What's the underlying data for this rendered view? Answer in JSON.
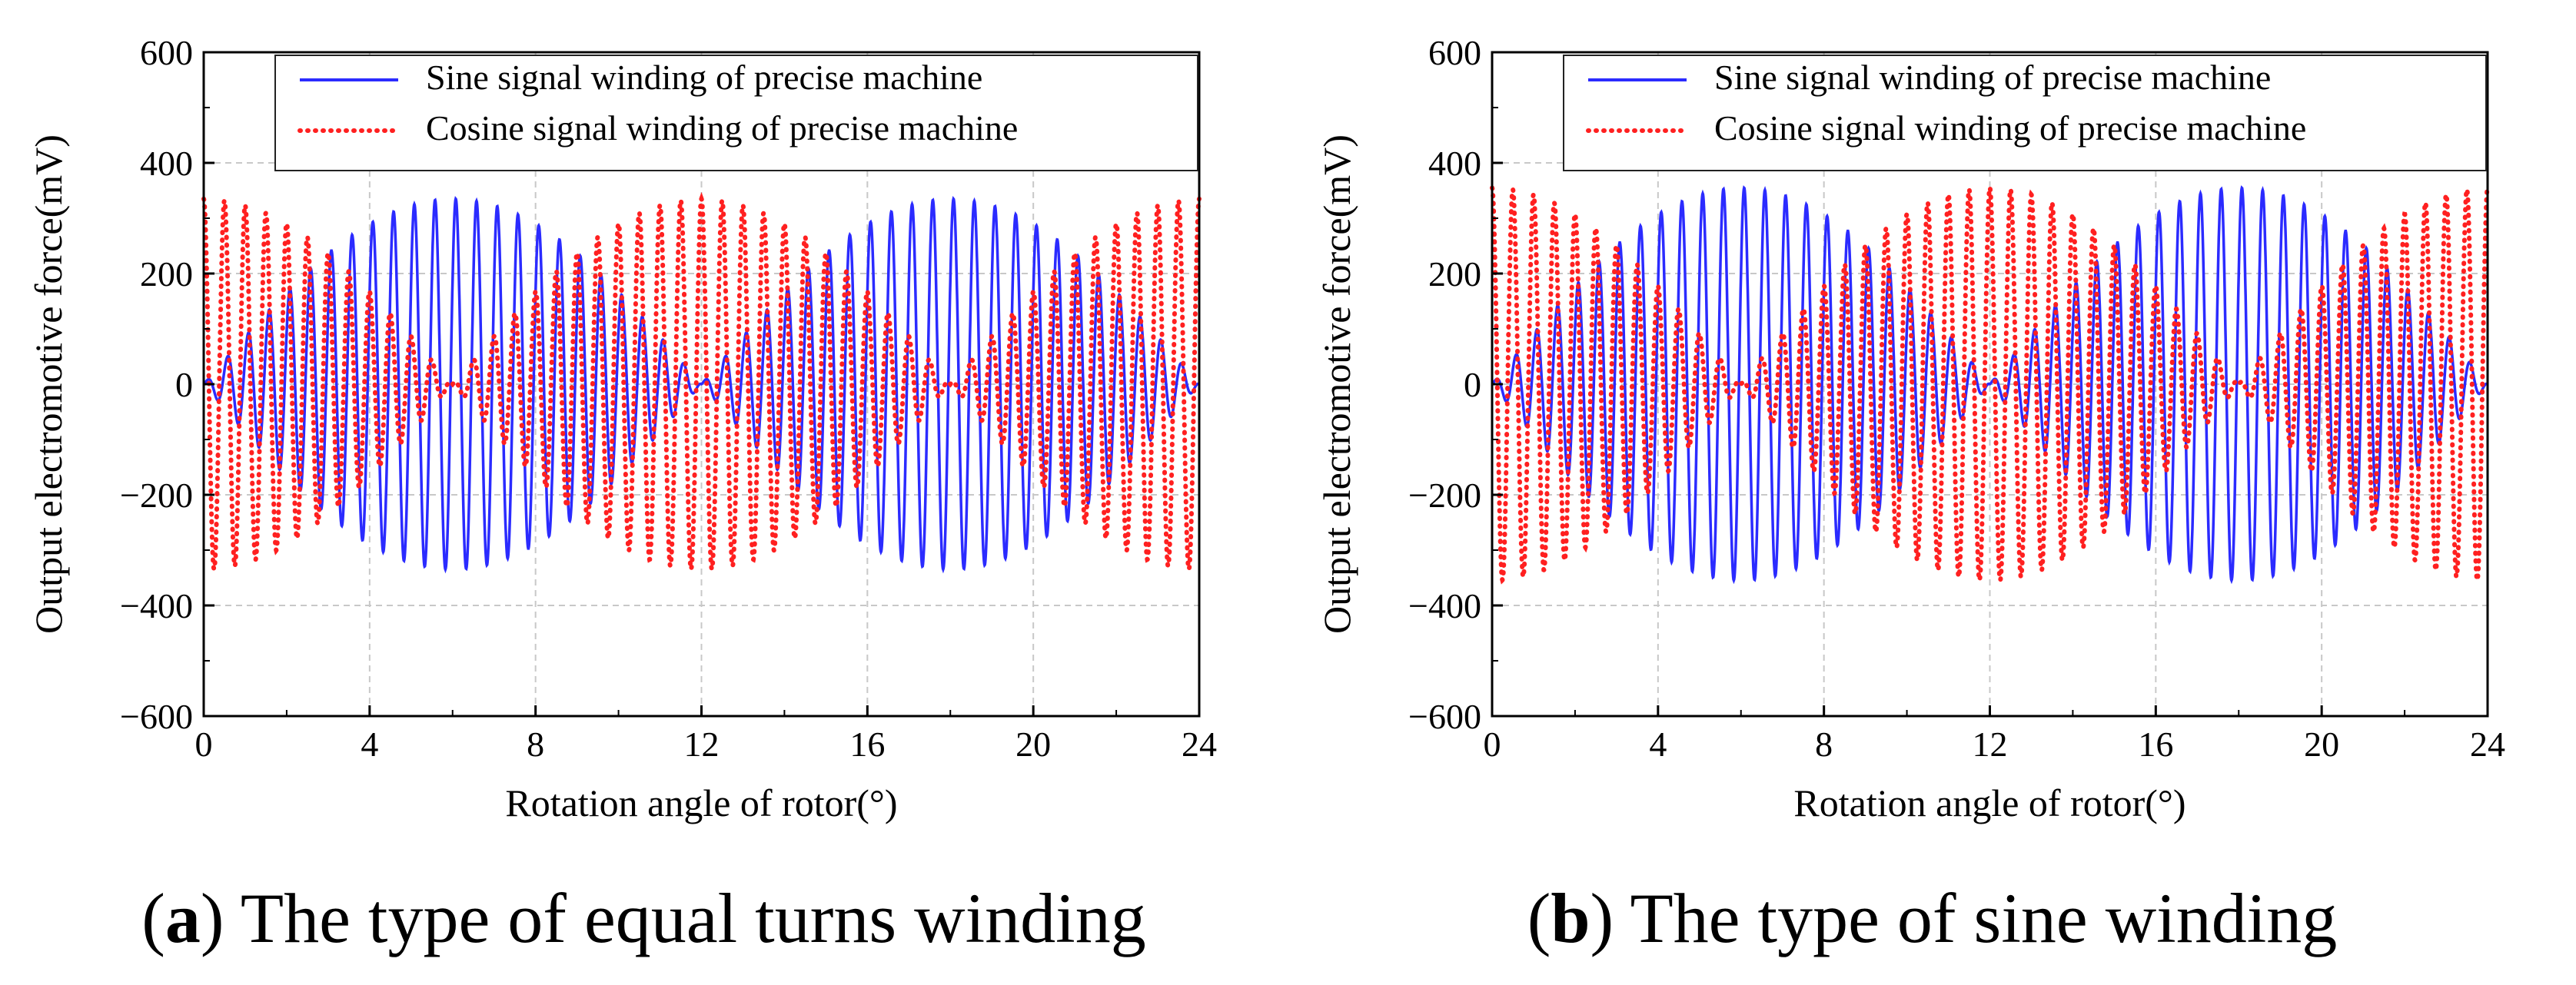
{
  "chart_data": [
    {
      "type": "line",
      "panel_letter": "a",
      "caption": "The type of equal turns winding",
      "xlabel": "Rotation angle of rotor(°)",
      "ylabel": "Output electromotive force(mV)",
      "xlim": [
        0,
        24
      ],
      "ylim": [
        -600,
        600
      ],
      "xticks": [
        "0",
        "4",
        "8",
        "12",
        "16",
        "20",
        "24"
      ],
      "yticks": [
        "−600",
        "−400",
        "−200",
        "0",
        "200",
        "400",
        "600"
      ],
      "grid": true,
      "legend_position": "top-right",
      "carrier_cycles_per_degree": 2,
      "series": [
        {
          "name": "Sine signal winding of precise machine",
          "color": "#2b2bff",
          "style": "solid",
          "envelope": "sine",
          "amplitude_mV": 335,
          "envelope_period_deg": 12,
          "peak_angles_deg": [
            6,
            18
          ]
        },
        {
          "name": "Cosine signal winding of precise machine",
          "color": "#ff2020",
          "style": "dotted",
          "envelope": "cosine",
          "amplitude_mV": 335,
          "envelope_period_deg": 12,
          "peak_angles_deg": [
            0,
            12,
            24
          ]
        }
      ]
    },
    {
      "type": "line",
      "panel_letter": "b",
      "caption": "The type of sine winding",
      "xlabel": "Rotation angle of rotor(°)",
      "ylabel": "Output electromotive force(mV)",
      "xlim": [
        0,
        24
      ],
      "ylim": [
        -600,
        600
      ],
      "xticks": [
        "0",
        "4",
        "8",
        "12",
        "16",
        "20",
        "24"
      ],
      "yticks": [
        "−600",
        "−400",
        "−200",
        "0",
        "200",
        "400",
        "600"
      ],
      "grid": true,
      "legend_position": "top-right",
      "carrier_cycles_per_degree": 2,
      "series": [
        {
          "name": "Sine signal winding of precise machine",
          "color": "#2b2bff",
          "style": "solid",
          "envelope": "sine",
          "amplitude_mV": 355,
          "envelope_period_deg": 12,
          "peak_angles_deg": [
            6,
            18
          ]
        },
        {
          "name": "Cosine signal winding of precise machine",
          "color": "#ff2020",
          "style": "dotted",
          "envelope": "cosine",
          "amplitude_mV": 355,
          "envelope_period_deg": 12,
          "peak_angles_deg": [
            0,
            12,
            24
          ]
        }
      ]
    }
  ]
}
